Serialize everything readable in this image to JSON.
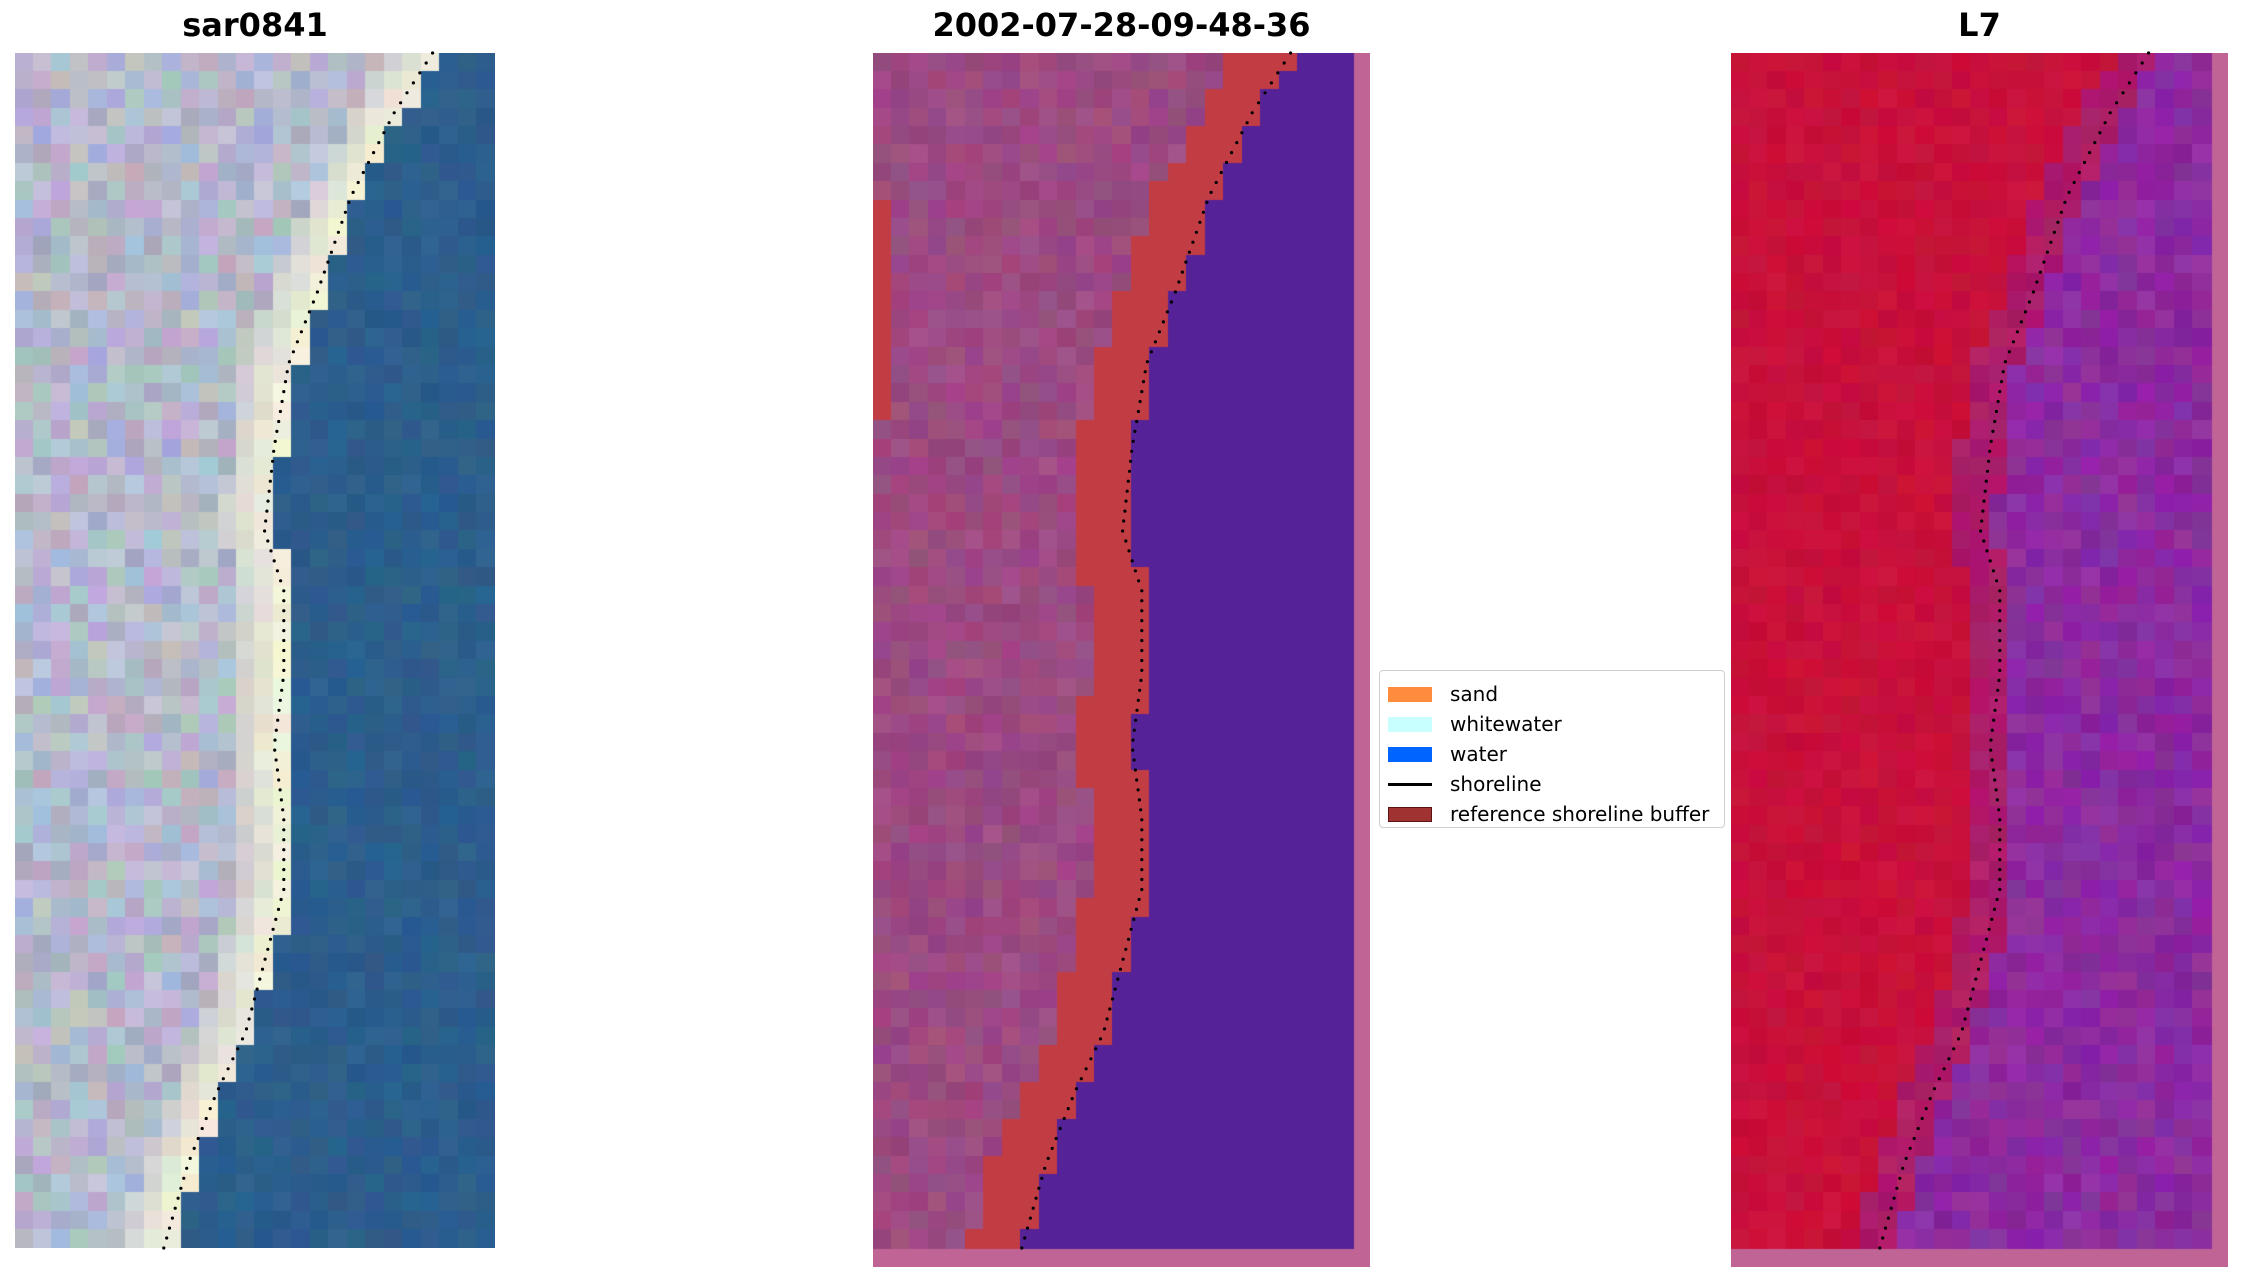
{
  "panels": [
    {
      "title": "sar0841",
      "kind": "rgb"
    },
    {
      "title": "2002-07-28-09-48-36",
      "kind": "classified"
    },
    {
      "title": "L7",
      "kind": "index"
    }
  ],
  "colors": {
    "sand": "#ff8c3c",
    "whitewater": "#c8ffff",
    "water": "#0064ff",
    "shoreline": "#000000",
    "buffer": "#a03232",
    "buffer_border": "#5a1414",
    "rgb_land": "#b4b8cc",
    "rgb_beach": "#f0f0d8",
    "rgb_water": "#2c5e8c",
    "class_land": "#9c4a82",
    "class_buffer": "#c23c44",
    "class_water": "#552297",
    "class_frame": "#c06496",
    "index_land": "#c8103a",
    "index_water": "#8c2aa0"
  },
  "legend": {
    "items": [
      {
        "label": "sand",
        "type": "patch",
        "color_key": "sand"
      },
      {
        "label": "whitewater",
        "type": "patch",
        "color_key": "whitewater"
      },
      {
        "label": "water",
        "type": "patch",
        "color_key": "water"
      },
      {
        "label": "shoreline",
        "type": "line",
        "color_key": "shoreline"
      },
      {
        "label": "reference shoreline buffer",
        "type": "patch",
        "color_key": "buffer"
      }
    ]
  }
}
